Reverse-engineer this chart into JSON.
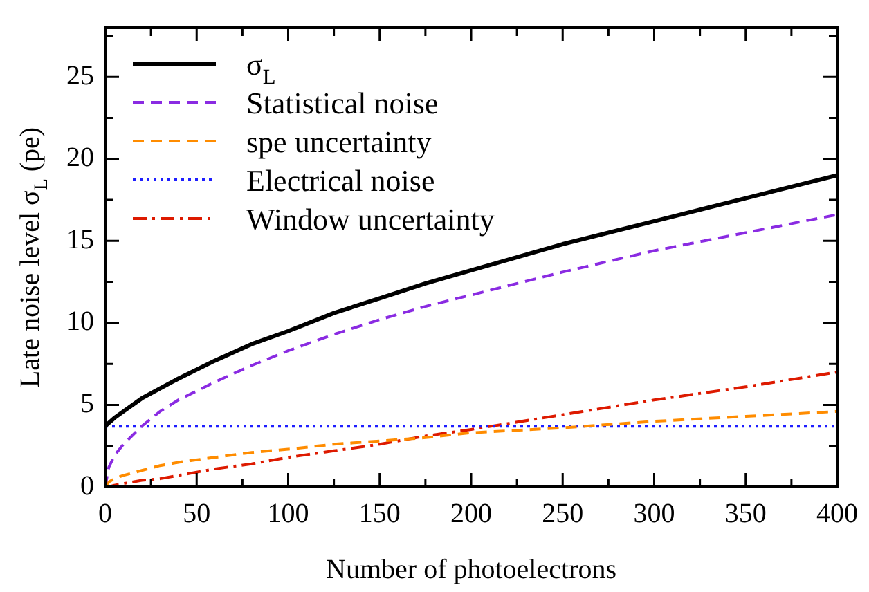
{
  "chart_data": {
    "type": "line",
    "xlabel": "Number of photoelectrons",
    "ylabel": "Late noise level σ$_{L}$ (pe)",
    "x": [
      0,
      2,
      5,
      10,
      20,
      30,
      40,
      60,
      80,
      100,
      125,
      150,
      175,
      200,
      250,
      300,
      350,
      400
    ],
    "series": [
      {
        "name": "σ$_{L}$",
        "color": "#000000",
        "line_style": "solid",
        "values": [
          3.7,
          3.9,
          4.2,
          4.6,
          5.4,
          6.0,
          6.6,
          7.7,
          8.7,
          9.5,
          10.6,
          11.5,
          12.4,
          13.2,
          14.8,
          16.2,
          17.6,
          19.0
        ]
      },
      {
        "name": "Statistical noise",
        "color": "#8a2be2",
        "line_style": "dashed",
        "values": [
          0,
          1.2,
          1.9,
          2.6,
          3.7,
          4.6,
          5.3,
          6.4,
          7.4,
          8.3,
          9.3,
          10.2,
          11.0,
          11.7,
          13.1,
          14.4,
          15.5,
          16.6
        ]
      },
      {
        "name": "spe uncertainty",
        "color": "#ff8c00",
        "line_style": "dashed",
        "values": [
          0,
          0.3,
          0.5,
          0.7,
          1.0,
          1.3,
          1.5,
          1.8,
          2.1,
          2.3,
          2.6,
          2.8,
          3.0,
          3.3,
          3.6,
          4.0,
          4.3,
          4.6
        ]
      },
      {
        "name": "Electrical noise",
        "color": "#1e1eff",
        "line_style": "dotted",
        "values": [
          3.7,
          3.7,
          3.7,
          3.7,
          3.7,
          3.7,
          3.7,
          3.7,
          3.7,
          3.7,
          3.7,
          3.7,
          3.7,
          3.7,
          3.7,
          3.7,
          3.7,
          3.7
        ]
      },
      {
        "name": "Window uncertainty",
        "color": "#dd1a00",
        "line_style": "dashdot",
        "values": [
          0,
          0.0,
          0.1,
          0.2,
          0.4,
          0.5,
          0.7,
          1.1,
          1.4,
          1.8,
          2.2,
          2.6,
          3.1,
          3.5,
          4.4,
          5.3,
          6.1,
          7.0
        ]
      }
    ],
    "xlim": [
      0,
      400
    ],
    "ylim": [
      0,
      28
    ],
    "xticks": [
      0,
      {
        "value": 25,
        "label": null
      },
      50,
      {
        "value": 75,
        "label": null
      },
      100,
      {
        "value": 125,
        "label": null
      },
      150,
      {
        "value": 175,
        "label": null
      },
      200,
      {
        "value": 225,
        "label": null
      },
      250,
      {
        "value": 275,
        "label": null
      },
      300,
      {
        "value": 325,
        "label": null
      },
      350,
      {
        "value": 375,
        "label": null
      },
      400
    ],
    "yticks": [
      0,
      {
        "value": 2.5,
        "label": null
      },
      5,
      {
        "value": 7.5,
        "label": null
      },
      10,
      {
        "value": 12.5,
        "label": null
      },
      15,
      {
        "value": 17.5,
        "label": null
      },
      20,
      {
        "value": 22.5,
        "label": null
      },
      25,
      {
        "value": 27.5,
        "label": null
      }
    ],
    "marker": "none",
    "grid": false,
    "legend": "top left"
  }
}
